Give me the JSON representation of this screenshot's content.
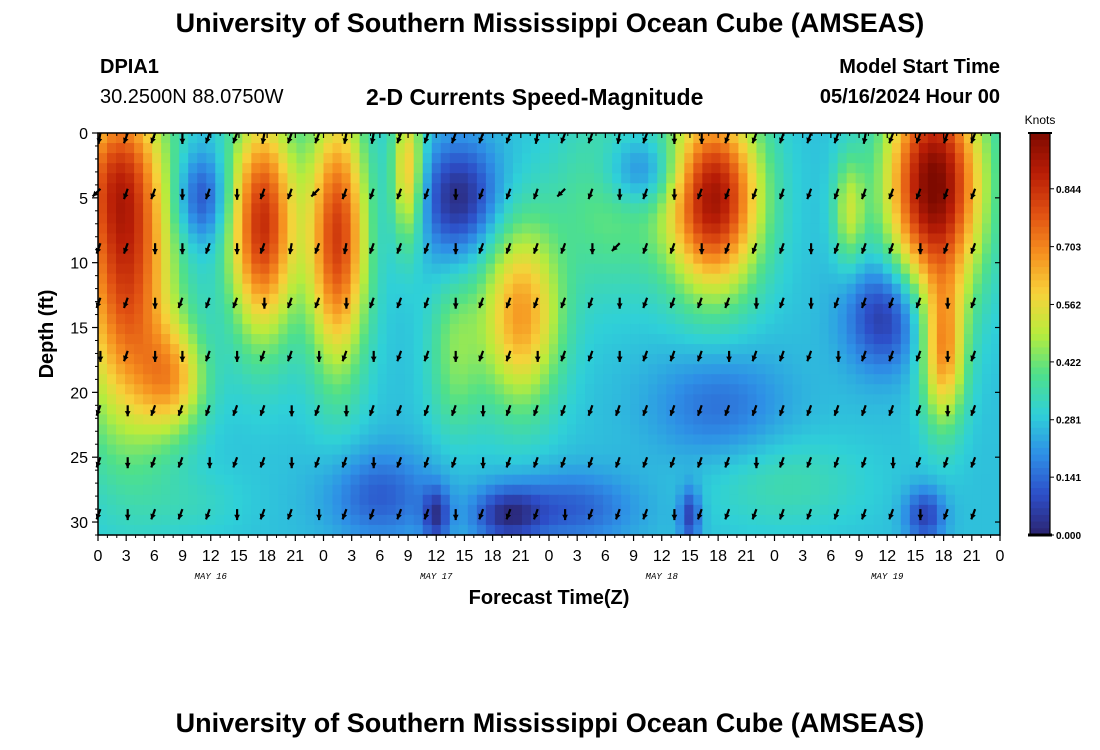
{
  "header": {
    "title": "University of Southern Mississippi Ocean Cube (AMSEAS)",
    "station_id": "DPIA1",
    "coords": "30.2500N  88.0750W",
    "product": "2-D Currents Speed-Magnitude",
    "model_label": "Model Start Time",
    "model_time": "05/16/2024 Hour 00"
  },
  "footer": {
    "title": "University of Southern Mississippi Ocean Cube (AMSEAS)"
  },
  "chart_data": {
    "type": "heatmap",
    "title": "2-D Currents Speed-Magnitude",
    "xlabel": "Forecast Time(Z)",
    "ylabel": "Depth (ft)",
    "xlim": [
      0,
      96
    ],
    "ylim": [
      0,
      31
    ],
    "x_ticks": [
      0,
      3,
      6,
      9,
      12,
      15,
      18,
      21,
      24,
      27,
      30,
      33,
      36,
      39,
      42,
      45,
      48,
      51,
      54,
      57,
      60,
      63,
      66,
      69,
      72,
      75,
      78,
      81,
      84,
      87,
      90,
      93,
      96
    ],
    "x_tick_labels": [
      "0",
      "3",
      "6",
      "9",
      "12",
      "15",
      "18",
      "21",
      "0",
      "3",
      "6",
      "9",
      "12",
      "15",
      "18",
      "21",
      "0",
      "3",
      "6",
      "9",
      "12",
      "15",
      "18",
      "21",
      "0",
      "3",
      "6",
      "9",
      "12",
      "15",
      "18",
      "21",
      "0"
    ],
    "day_labels": [
      {
        "x": 12,
        "label": "MAY 16"
      },
      {
        "x": 36,
        "label": "MAY 17"
      },
      {
        "x": 60,
        "label": "MAY 18"
      },
      {
        "x": 84,
        "label": "MAY 19"
      }
    ],
    "y_ticks": [
      0,
      5,
      10,
      15,
      20,
      25,
      30
    ],
    "y_tick_labels": [
      "0",
      "5",
      "10",
      "15",
      "20",
      "25",
      "30"
    ],
    "colorbar": {
      "label": "Knots",
      "min": 0.0,
      "max": 0.98,
      "ticks": [
        0.0,
        0.141,
        0.281,
        0.422,
        0.562,
        0.703,
        0.844
      ],
      "tick_labels": [
        "0.000",
        "0.141",
        "0.281",
        "0.422",
        "0.562",
        "0.703",
        "0.844"
      ],
      "colors": [
        "#2b2470",
        "#2d4ec8",
        "#2e8fe6",
        "#2fd0d8",
        "#4fe08a",
        "#b8ec3c",
        "#f7d23a",
        "#f6901f",
        "#e05012",
        "#b81d06",
        "#7e0a00"
      ]
    },
    "blobs": [
      {
        "x": 3,
        "y": 10,
        "sx": 3.5,
        "sy": 9,
        "v": 0.55
      },
      {
        "x": 1.5,
        "y": 3,
        "sx": 3,
        "sy": 4,
        "v": 0.2
      },
      {
        "x": 8,
        "y": 19,
        "sx": 2.5,
        "sy": 3,
        "v": 0.3
      },
      {
        "x": 17.5,
        "y": 7,
        "sx": 2.5,
        "sy": 6,
        "v": 0.58
      },
      {
        "x": 25.5,
        "y": 8,
        "sx": 2.2,
        "sy": 7,
        "v": 0.55
      },
      {
        "x": 33,
        "y": 3,
        "sx": 1.2,
        "sy": 4,
        "v": 0.35
      },
      {
        "x": 45,
        "y": 14,
        "sx": 3,
        "sy": 5,
        "v": 0.4
      },
      {
        "x": 65.5,
        "y": 5,
        "sx": 3.5,
        "sy": 5,
        "v": 0.65
      },
      {
        "x": 89,
        "y": 4,
        "sx": 3.5,
        "sy": 6,
        "v": 0.72
      },
      {
        "x": 90,
        "y": 17,
        "sx": 1.6,
        "sy": 4,
        "v": 0.38
      },
      {
        "x": 80,
        "y": 6,
        "sx": 1.2,
        "sy": 3,
        "v": 0.22
      },
      {
        "x": 54.5,
        "y": 5,
        "sx": 4,
        "sy": 5,
        "v": 0.15
      },
      {
        "x": 38,
        "y": 20,
        "sx": 2,
        "sy": 3,
        "v": 0.1
      },
      {
        "x": 38,
        "y": 15,
        "sx": 2,
        "sy": 3,
        "v": 0.12
      },
      {
        "x": 11,
        "y": 5,
        "sx": 2,
        "sy": 2.5,
        "v": -0.2
      },
      {
        "x": 38.5,
        "y": 5,
        "sx": 3,
        "sy": 3,
        "v": -0.25
      },
      {
        "x": 58,
        "y": 3,
        "sx": 3,
        "sy": 2,
        "v": -0.2
      },
      {
        "x": 66,
        "y": 21,
        "sx": 5,
        "sy": 3,
        "v": -0.12
      },
      {
        "x": 84,
        "y": 14,
        "sx": 3,
        "sy": 3,
        "v": -0.25
      },
      {
        "x": 30,
        "y": 28,
        "sx": 4,
        "sy": 2.5,
        "v": -0.15
      },
      {
        "x": 50,
        "y": 29,
        "sx": 5,
        "sy": 2,
        "v": -0.15
      },
      {
        "x": 36,
        "y": 29.5,
        "sx": 1,
        "sy": 1.5,
        "v": -0.2
      },
      {
        "x": 43.5,
        "y": 29.5,
        "sx": 2.5,
        "sy": 1.5,
        "v": -0.2
      },
      {
        "x": 63,
        "y": 29.5,
        "sx": 0.8,
        "sy": 1.5,
        "v": -0.2
      },
      {
        "x": 88,
        "y": 29.5,
        "sx": 1.5,
        "sy": 1.5,
        "v": -0.2
      },
      {
        "x": 10,
        "y": 28.5,
        "sx": 4,
        "sy": 2,
        "v": 0.05
      },
      {
        "x": 73,
        "y": 27,
        "sx": 6,
        "sy": 2.5,
        "v": 0.08
      }
    ],
    "arrow_depths": [
      0,
      4.3,
      8.5,
      12.7,
      16.8,
      21,
      25,
      29
    ],
    "arrows": [
      [
        190,
        200,
        200,
        180,
        200,
        200,
        190,
        200,
        200,
        190,
        190,
        200,
        200,
        200,
        200,
        200,
        190,
        200,
        200,
        190,
        200,
        180,
        180,
        200,
        200,
        200,
        200,
        200,
        190,
        200,
        200,
        200,
        200
      ],
      [
        225,
        200,
        200,
        180,
        200,
        180,
        200,
        200,
        225,
        200,
        200,
        200,
        200,
        180,
        200,
        200,
        200,
        225,
        200,
        180,
        200,
        180,
        200,
        200,
        200,
        200,
        200,
        200,
        200,
        200,
        200,
        200,
        200
      ],
      [
        200,
        200,
        180,
        180,
        200,
        180,
        200,
        190,
        200,
        190,
        200,
        200,
        200,
        180,
        200,
        200,
        200,
        200,
        180,
        225,
        200,
        200,
        180,
        200,
        200,
        200,
        180,
        200,
        200,
        200,
        180,
        200,
        200
      ],
      [
        200,
        200,
        180,
        200,
        200,
        200,
        180,
        200,
        200,
        180,
        200,
        200,
        200,
        180,
        200,
        200,
        200,
        200,
        200,
        180,
        200,
        200,
        200,
        200,
        180,
        200,
        180,
        200,
        200,
        200,
        200,
        180,
        200
      ],
      [
        180,
        200,
        180,
        180,
        200,
        180,
        200,
        200,
        180,
        200,
        180,
        200,
        200,
        180,
        200,
        200,
        180,
        200,
        200,
        180,
        200,
        200,
        200,
        180,
        200,
        200,
        200,
        180,
        200,
        200,
        200,
        180,
        200
      ],
      [
        200,
        180,
        200,
        200,
        200,
        200,
        200,
        180,
        200,
        180,
        200,
        200,
        200,
        200,
        180,
        200,
        200,
        200,
        200,
        200,
        200,
        200,
        200,
        200,
        200,
        200,
        200,
        200,
        200,
        200,
        200,
        180,
        200
      ],
      [
        200,
        180,
        200,
        200,
        180,
        200,
        200,
        180,
        200,
        200,
        180,
        200,
        200,
        200,
        180,
        200,
        200,
        200,
        200,
        200,
        200,
        200,
        200,
        200,
        180,
        200,
        200,
        200,
        200,
        180,
        200,
        200,
        200
      ],
      [
        200,
        180,
        200,
        200,
        200,
        180,
        200,
        200,
        180,
        200,
        200,
        200,
        200,
        180,
        200,
        200,
        200,
        180,
        200,
        200,
        200,
        180,
        200,
        200,
        200,
        200,
        200,
        200,
        200,
        200,
        180,
        200,
        200
      ]
    ]
  }
}
